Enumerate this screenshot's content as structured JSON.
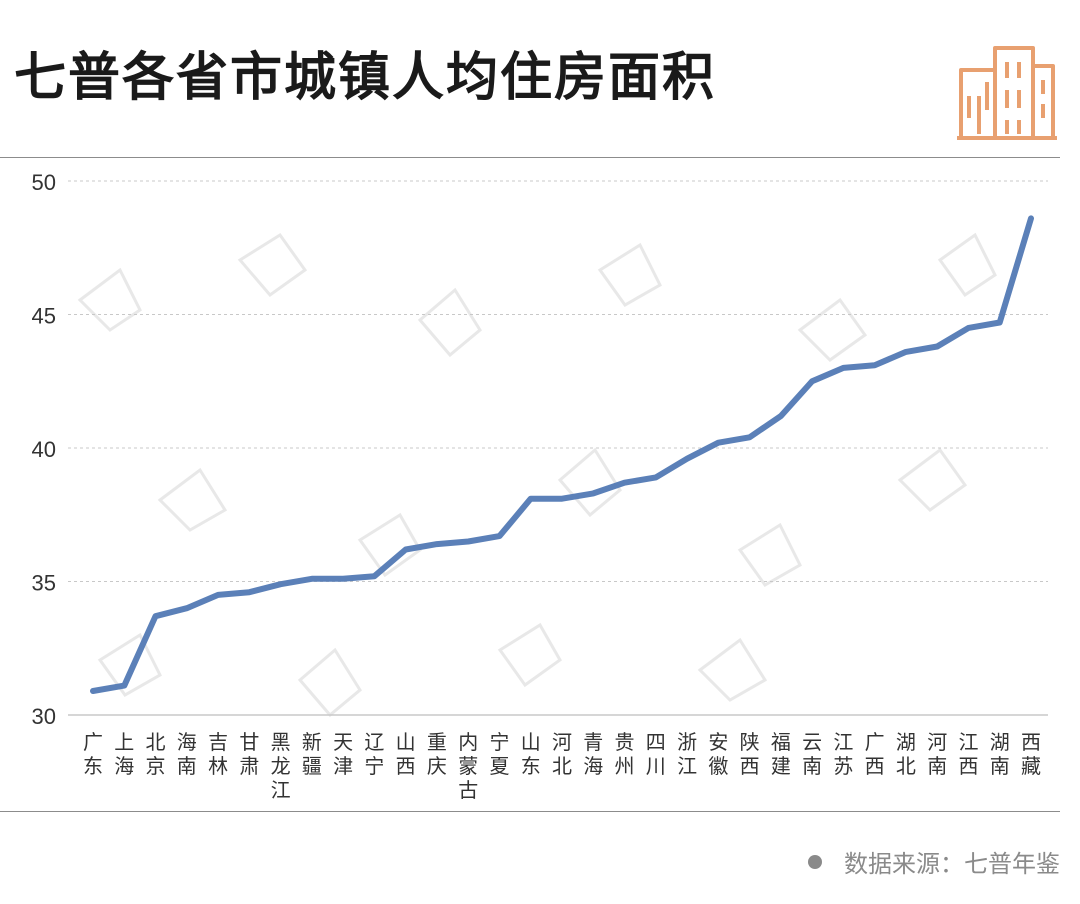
{
  "title": "七普各省市城镇人均住房面积",
  "source": "数据来源：七普年鉴",
  "logo_icon": "buildings-icon",
  "colors": {
    "line": "#5b80b8",
    "grid": "#c8c8c8",
    "axis_text": "#333333",
    "logo": "#e8a070",
    "rule": "#8c8c8c",
    "footer": "#8a8a8a"
  },
  "chart_data": {
    "type": "line",
    "categories": [
      "广东",
      "上海",
      "北京",
      "海南",
      "吉林",
      "甘肃",
      "黑龙江",
      "新疆",
      "天津",
      "辽宁",
      "山西",
      "重庆",
      "内蒙古",
      "宁夏",
      "山东",
      "河北",
      "青海",
      "贵州",
      "四川",
      "浙江",
      "安徽",
      "陕西",
      "福建",
      "云南",
      "江苏",
      "广西",
      "湖北",
      "河南",
      "江西",
      "湖南",
      "西藏"
    ],
    "values": [
      30.9,
      31.1,
      33.7,
      34.0,
      34.5,
      34.6,
      34.9,
      35.1,
      35.1,
      35.2,
      36.2,
      36.4,
      36.5,
      36.7,
      38.1,
      38.1,
      38.3,
      38.7,
      38.9,
      39.6,
      40.2,
      40.4,
      41.2,
      42.5,
      43.0,
      43.1,
      43.6,
      43.8,
      44.5,
      44.7,
      48.6
    ],
    "ylim": [
      30,
      50
    ],
    "yticks": [
      30,
      35,
      40,
      45,
      50
    ],
    "ytick_labels": [
      "30",
      "35",
      "40",
      "45",
      "50"
    ],
    "grid": "horizontal dashed",
    "title": "",
    "xlabel": "",
    "ylabel": ""
  }
}
